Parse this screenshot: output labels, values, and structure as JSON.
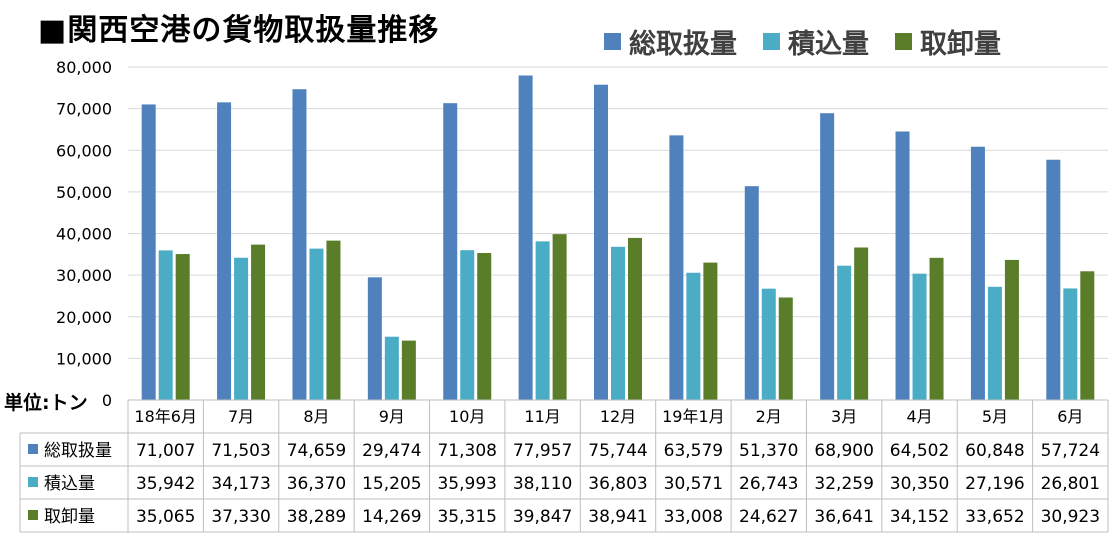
{
  "chart_data": {
    "type": "bar",
    "title": "■関西空港の貨物取扱量推移",
    "unit_label": "単位:トン",
    "categories": [
      "18年6月",
      "7月",
      "8月",
      "9月",
      "10月",
      "11月",
      "12月",
      "19年1月",
      "2月",
      "3月",
      "4月",
      "5月",
      "6月"
    ],
    "series": [
      {
        "name": "総取扱量",
        "color": "#4f81bd",
        "values": [
          71007,
          71503,
          74659,
          29474,
          71308,
          77957,
          75744,
          63579,
          51370,
          68900,
          64502,
          60848,
          57724
        ],
        "labels": [
          "71,007",
          "71,503",
          "74,659",
          "29,474",
          "71,308",
          "77,957",
          "75,744",
          "63,579",
          "51,370",
          "68,900",
          "64,502",
          "60,848",
          "57,724"
        ]
      },
      {
        "name": "積込量",
        "color": "#4bacc6",
        "values": [
          35942,
          34173,
          36370,
          15205,
          35993,
          38110,
          36803,
          30571,
          26743,
          32259,
          30350,
          27196,
          26801
        ],
        "labels": [
          "35,942",
          "34,173",
          "36,370",
          "15,205",
          "35,993",
          "38,110",
          "36,803",
          "30,571",
          "26,743",
          "32,259",
          "30,350",
          "27,196",
          "26,801"
        ]
      },
      {
        "name": "取卸量",
        "color": "#5a7d2a",
        "values": [
          35065,
          37330,
          38289,
          14269,
          35315,
          39847,
          38941,
          33008,
          24627,
          36641,
          34152,
          33652,
          30923
        ],
        "labels": [
          "35,065",
          "37,330",
          "38,289",
          "14,269",
          "35,315",
          "39,847",
          "38,941",
          "33,008",
          "24,627",
          "36,641",
          "34,152",
          "33,652",
          "30,923"
        ]
      }
    ],
    "ylim": [
      0,
      80000
    ],
    "yticks": [
      0,
      10000,
      20000,
      30000,
      40000,
      50000,
      60000,
      70000,
      80000
    ],
    "ytick_labels": [
      "0",
      "10,000",
      "20,000",
      "30,000",
      "40,000",
      "50,000",
      "60,000",
      "70,000",
      "80,000"
    ],
    "grid": true,
    "legend_position": "top-right",
    "data_table": true
  }
}
